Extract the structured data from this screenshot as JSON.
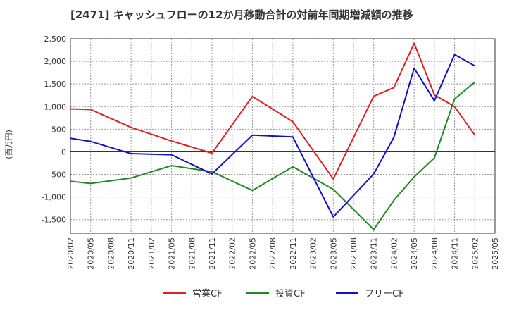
{
  "chart_data": {
    "type": "line",
    "title": "[2471]  キャッシュフローの12か月移動合計の対前年同期増減額の推移",
    "xlabel": "",
    "ylabel": "(百万円)",
    "ylim": [
      -1800,
      2500
    ],
    "yticks": [
      2500,
      2000,
      1500,
      1000,
      500,
      0,
      -500,
      -1000,
      -1500
    ],
    "ytick_labels": [
      "2,500",
      "2,000",
      "1,500",
      "1,000",
      "500",
      "0",
      "-500",
      "-1,000",
      "-1,500"
    ],
    "categories": [
      "2020/02",
      "2020/05",
      "2020/08",
      "2020/11",
      "2021/02",
      "2021/05",
      "2021/08",
      "2021/11",
      "2022/02",
      "2022/05",
      "2022/08",
      "2022/11",
      "2023/02",
      "2023/05",
      "2023/08",
      "2023/11",
      "2024/02",
      "2024/05",
      "2024/08",
      "2024/11",
      "2025/02",
      "2025/05"
    ],
    "series": [
      {
        "name": "営業CF",
        "color": "#dd2222",
        "values": [
          950,
          935,
          null,
          540,
          null,
          240,
          null,
          -30,
          null,
          1225,
          null,
          665,
          null,
          -600,
          null,
          1230,
          1420,
          2400,
          1260,
          1000,
          370,
          null
        ]
      },
      {
        "name": "投資CF",
        "color": "#228822",
        "values": [
          -650,
          -700,
          null,
          -580,
          null,
          -305,
          null,
          -440,
          null,
          -855,
          null,
          -330,
          null,
          -830,
          null,
          -1720,
          -1070,
          -555,
          -135,
          1170,
          1540,
          null
        ]
      },
      {
        "name": "フリーCF",
        "color": "#1111cc",
        "values": [
          300,
          230,
          null,
          -40,
          null,
          -65,
          null,
          -490,
          null,
          370,
          null,
          330,
          null,
          -1440,
          null,
          -490,
          325,
          1850,
          1130,
          2150,
          1900,
          null
        ]
      }
    ],
    "grid": true,
    "legend_position": "bottom"
  }
}
